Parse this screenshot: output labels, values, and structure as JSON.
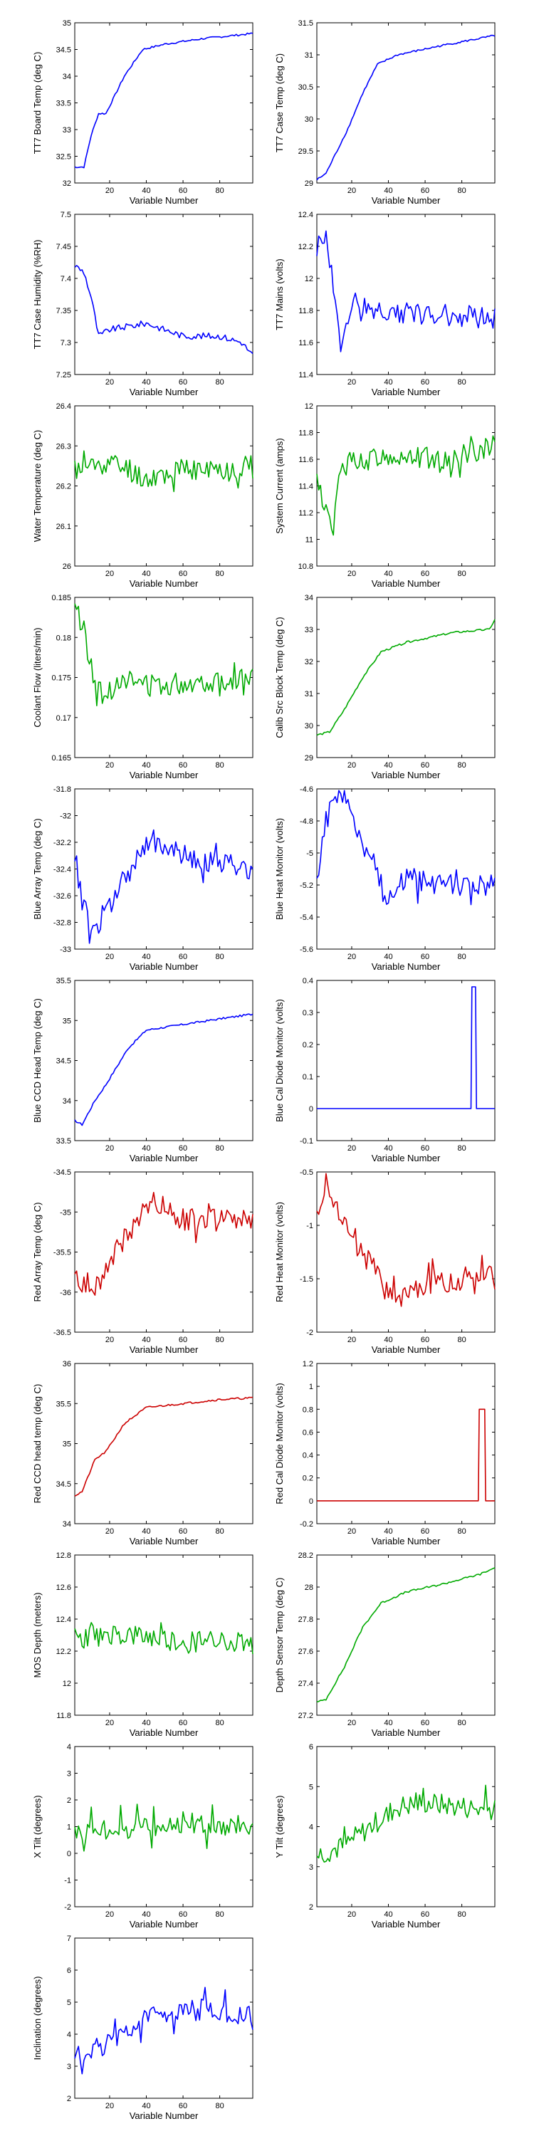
{
  "figure": {
    "xlabel": "Variable Number",
    "x_ticks": [
      20,
      40,
      60,
      80
    ],
    "xlim": [
      1,
      98
    ]
  },
  "chart_data": [
    {
      "type": "line",
      "ylabel": "TT7 Board Temp (deg C)",
      "ylim": [
        32,
        35
      ],
      "y_ticks": [
        "32",
        "32.5",
        "33",
        "33.5",
        "34",
        "34.5",
        "35"
      ],
      "color": "#0000ff",
      "shape": "cumrise",
      "series": [
        {
          "points": [
            [
              1,
              32.3
            ],
            [
              6,
              32.3
            ],
            [
              10,
              32.9
            ],
            [
              14,
              33.3
            ],
            [
              18,
              33.3
            ],
            [
              28,
              34.0
            ],
            [
              38,
              34.5
            ],
            [
              50,
              34.6
            ],
            [
              70,
              34.7
            ],
            [
              98,
              34.8
            ]
          ]
        }
      ]
    },
    {
      "type": "line",
      "ylabel": "TT7 Case Temp (deg C)",
      "ylim": [
        29,
        31.5
      ],
      "y_ticks": [
        "29",
        "29.5",
        "30",
        "30.5",
        "31",
        "31.5"
      ],
      "color": "#0000ff",
      "shape": "cumrise",
      "series": [
        {
          "points": [
            [
              1,
              29.05
            ],
            [
              6,
              29.15
            ],
            [
              12,
              29.5
            ],
            [
              18,
              29.85
            ],
            [
              26,
              30.4
            ],
            [
              34,
              30.85
            ],
            [
              45,
              31.0
            ],
            [
              70,
              31.15
            ],
            [
              98,
              31.3
            ]
          ]
        }
      ]
    },
    {
      "type": "line",
      "ylabel": "TT7 Case Humidity (%RH)",
      "ylim": [
        7.25,
        7.5
      ],
      "y_ticks": [
        "7.25",
        "7.3",
        "7.35",
        "7.4",
        "7.45",
        "7.5"
      ],
      "color": "#0000ff",
      "shape": "steps",
      "series": [
        {
          "points": [
            [
              1,
              7.42
            ],
            [
              6,
              7.41
            ],
            [
              10,
              7.37
            ],
            [
              14,
              7.31
            ],
            [
              20,
              7.32
            ],
            [
              40,
              7.33
            ],
            [
              60,
              7.31
            ],
            [
              80,
              7.31
            ],
            [
              92,
              7.3
            ],
            [
              98,
              7.28
            ]
          ]
        }
      ]
    },
    {
      "type": "line",
      "ylabel": "TT7 Mains  (volts)",
      "ylim": [
        11.4,
        12.4
      ],
      "y_ticks": [
        "11.4",
        "11.6",
        "11.8",
        "12",
        "12.2",
        "12.4"
      ],
      "color": "#0000ff",
      "shape": "noisy",
      "series": [
        {
          "points": [
            [
              1,
              12.2
            ],
            [
              6,
              12.25
            ],
            [
              9,
              12.05
            ],
            [
              12,
              11.75
            ],
            [
              16,
              11.62
            ],
            [
              20,
              11.85
            ],
            [
              30,
              11.8
            ],
            [
              60,
              11.78
            ],
            [
              98,
              11.75
            ]
          ]
        }
      ]
    },
    {
      "type": "line",
      "ylabel": "Water Temperature (deg C)",
      "ylim": [
        26,
        26.4
      ],
      "y_ticks": [
        "26",
        "26.1",
        "26.2",
        "26.3",
        "26.4"
      ],
      "color": "#00aa00",
      "shape": "noisy",
      "series": [
        {
          "points": [
            [
              1,
              26.24
            ],
            [
              20,
              26.26
            ],
            [
              40,
              26.22
            ],
            [
              60,
              26.24
            ],
            [
              80,
              26.24
            ],
            [
              98,
              26.25
            ]
          ]
        }
      ]
    },
    {
      "type": "line",
      "ylabel": "System Current (amps)",
      "ylim": [
        10.8,
        12
      ],
      "y_ticks": [
        "10.8",
        "11",
        "11.2",
        "11.4",
        "11.6",
        "11.8",
        "12"
      ],
      "color": "#00aa00",
      "shape": "noisy",
      "series": [
        {
          "points": [
            [
              1,
              11.45
            ],
            [
              6,
              11.2
            ],
            [
              10,
              11.05
            ],
            [
              14,
              11.55
            ],
            [
              25,
              11.6
            ],
            [
              50,
              11.62
            ],
            [
              75,
              11.6
            ],
            [
              98,
              11.72
            ]
          ]
        }
      ]
    },
    {
      "type": "line",
      "ylabel": "Coolant Flow (liters/min)",
      "ylim": [
        0.165,
        0.185
      ],
      "y_ticks": [
        "0.165",
        "0.17",
        "0.175",
        "0.18",
        "0.185"
      ],
      "color": "#00aa00",
      "shape": "noisy",
      "series": [
        {
          "points": [
            [
              1,
              0.184
            ],
            [
              6,
              0.181
            ],
            [
              10,
              0.176
            ],
            [
              16,
              0.172
            ],
            [
              25,
              0.175
            ],
            [
              40,
              0.174
            ],
            [
              70,
              0.1745
            ],
            [
              98,
              0.175
            ]
          ]
        }
      ]
    },
    {
      "type": "line",
      "ylabel": "Calib Src Block Temp (deg C)",
      "ylim": [
        29,
        34
      ],
      "y_ticks": [
        "29",
        "30",
        "31",
        "32",
        "33",
        "34"
      ],
      "color": "#00aa00",
      "shape": "cumrise",
      "series": [
        {
          "points": [
            [
              1,
              29.7
            ],
            [
              8,
              29.8
            ],
            [
              16,
              30.5
            ],
            [
              26,
              31.5
            ],
            [
              36,
              32.3
            ],
            [
              50,
              32.6
            ],
            [
              75,
              32.9
            ],
            [
              95,
              33.0
            ],
            [
              98,
              33.3
            ]
          ]
        }
      ]
    },
    {
      "type": "line",
      "ylabel": "Blue Array Temp (deg C)",
      "ylim": [
        -33,
        -31.8
      ],
      "y_ticks": [
        "-33",
        "-32.8",
        "-32.6",
        "-32.4",
        "-32.2",
        "-32",
        "-31.8"
      ],
      "color": "#0000ff",
      "shape": "noisy",
      "series": [
        {
          "points": [
            [
              1,
              -32.3
            ],
            [
              6,
              -32.7
            ],
            [
              12,
              -32.85
            ],
            [
              18,
              -32.75
            ],
            [
              28,
              -32.5
            ],
            [
              40,
              -32.2
            ],
            [
              60,
              -32.3
            ],
            [
              80,
              -32.35
            ],
            [
              98,
              -32.4
            ]
          ]
        }
      ]
    },
    {
      "type": "line",
      "ylabel": "Blue Heat Monitor (volts)",
      "ylim": [
        -5.6,
        -4.6
      ],
      "y_ticks": [
        "-5.6",
        "-5.4",
        "-5.2",
        "-5",
        "-4.8",
        "-4.6"
      ],
      "color": "#0000ff",
      "shape": "noisy",
      "series": [
        {
          "points": [
            [
              1,
              -5.1
            ],
            [
              6,
              -4.8
            ],
            [
              12,
              -4.65
            ],
            [
              20,
              -4.7
            ],
            [
              26,
              -5.0
            ],
            [
              32,
              -5.0
            ],
            [
              38,
              -5.3
            ],
            [
              50,
              -5.15
            ],
            [
              70,
              -5.2
            ],
            [
              98,
              -5.2
            ]
          ]
        }
      ]
    },
    {
      "type": "line",
      "ylabel": "Blue CCD Head Temp (deg C)",
      "ylim": [
        33.5,
        35.5
      ],
      "y_ticks": [
        "33.5",
        "34",
        "34.5",
        "35",
        "35.5"
      ],
      "color": "#0000ff",
      "shape": "cumrise",
      "series": [
        {
          "points": [
            [
              1,
              33.75
            ],
            [
              5,
              33.7
            ],
            [
              12,
              34.0
            ],
            [
              18,
              34.2
            ],
            [
              30,
              34.65
            ],
            [
              40,
              34.88
            ],
            [
              60,
              34.95
            ],
            [
              80,
              35.02
            ],
            [
              98,
              35.08
            ]
          ]
        }
      ]
    },
    {
      "type": "line",
      "ylabel": "Blue Cal Diode Monitor (volts)",
      "ylim": [
        -0.1,
        0.4
      ],
      "y_ticks": [
        "-0.1",
        "0",
        "0.1",
        "0.2",
        "0.3",
        "0.4"
      ],
      "color": "#0000ff",
      "shape": "spike",
      "series": [
        {
          "points": [
            [
              1,
              0
            ],
            [
              85,
              0
            ],
            [
              85.5,
              0.38
            ],
            [
              87.5,
              0.38
            ],
            [
              88,
              0
            ],
            [
              98,
              0
            ]
          ]
        }
      ]
    },
    {
      "type": "line",
      "ylabel": "Red Array Temp (deg C)",
      "ylim": [
        -36.5,
        -34.5
      ],
      "y_ticks": [
        "-36.5",
        "-36",
        "-35.5",
        "-35",
        "-34.5"
      ],
      "color": "#cc0000",
      "shape": "noisy",
      "series": [
        {
          "points": [
            [
              1,
              -35.8
            ],
            [
              8,
              -36.0
            ],
            [
              16,
              -35.8
            ],
            [
              26,
              -35.4
            ],
            [
              36,
              -35.1
            ],
            [
              44,
              -34.85
            ],
            [
              60,
              -35.1
            ],
            [
              80,
              -35.1
            ],
            [
              98,
              -35.1
            ]
          ]
        }
      ]
    },
    {
      "type": "line",
      "ylabel": "Red Heat Monitor (volts)",
      "ylim": [
        -2,
        -0.5
      ],
      "y_ticks": [
        "-2",
        "-1.5",
        "-1",
        "-0.5"
      ],
      "color": "#cc0000",
      "shape": "noisy",
      "series": [
        {
          "points": [
            [
              1,
              -0.85
            ],
            [
              6,
              -0.6
            ],
            [
              12,
              -0.8
            ],
            [
              20,
              -1.15
            ],
            [
              30,
              -1.35
            ],
            [
              38,
              -1.6
            ],
            [
              45,
              -1.7
            ],
            [
              60,
              -1.55
            ],
            [
              80,
              -1.5
            ],
            [
              98,
              -1.4
            ]
          ]
        }
      ]
    },
    {
      "type": "line",
      "ylabel": "Red CCD head temp (deg C)",
      "ylim": [
        34,
        36
      ],
      "y_ticks": [
        "34",
        "34.5",
        "35",
        "35.5",
        "36"
      ],
      "color": "#cc0000",
      "shape": "cumrise",
      "series": [
        {
          "points": [
            [
              1,
              34.35
            ],
            [
              5,
              34.4
            ],
            [
              12,
              34.8
            ],
            [
              18,
              34.9
            ],
            [
              28,
              35.25
            ],
            [
              40,
              35.45
            ],
            [
              60,
              35.5
            ],
            [
              80,
              35.55
            ],
            [
              98,
              35.57
            ]
          ]
        }
      ]
    },
    {
      "type": "line",
      "ylabel": "Red Cal Diode Monitor (volts)",
      "ylim": [
        -0.2,
        1.2
      ],
      "y_ticks": [
        "-0.2",
        "0",
        "0.2",
        "0.4",
        "0.6",
        "0.8",
        "1",
        "1.2"
      ],
      "color": "#cc0000",
      "shape": "spike",
      "series": [
        {
          "points": [
            [
              1,
              0
            ],
            [
              89,
              0
            ],
            [
              89.5,
              0.8
            ],
            [
              92.5,
              0.8
            ],
            [
              93,
              0
            ],
            [
              98,
              0
            ]
          ]
        }
      ]
    },
    {
      "type": "line",
      "ylabel": "MOS Depth  (meters)",
      "ylim": [
        11.8,
        12.8
      ],
      "y_ticks": [
        "11.8",
        "12",
        "12.2",
        "12.4",
        "12.6",
        "12.8"
      ],
      "color": "#00aa00",
      "shape": "noisy",
      "series": [
        {
          "points": [
            [
              1,
              12.28
            ],
            [
              20,
              12.3
            ],
            [
              40,
              12.28
            ],
            [
              60,
              12.25
            ],
            [
              80,
              12.28
            ],
            [
              98,
              12.25
            ]
          ]
        }
      ]
    },
    {
      "type": "line",
      "ylabel": "Depth Sensor Temp (deg C)",
      "ylim": [
        27.2,
        28.2
      ],
      "y_ticks": [
        "27.2",
        "27.4",
        "27.6",
        "27.8",
        "28",
        "28.2"
      ],
      "color": "#00aa00",
      "shape": "cumrise",
      "series": [
        {
          "points": [
            [
              1,
              27.28
            ],
            [
              6,
              27.3
            ],
            [
              16,
              27.5
            ],
            [
              26,
              27.75
            ],
            [
              36,
              27.9
            ],
            [
              50,
              27.97
            ],
            [
              70,
              28.02
            ],
            [
              90,
              28.08
            ],
            [
              98,
              28.12
            ]
          ]
        }
      ]
    },
    {
      "type": "line",
      "ylabel": "X Tilt  (degrees)",
      "ylim": [
        -2,
        4
      ],
      "y_ticks": [
        "-2",
        "-1",
        "0",
        "1",
        "2",
        "3",
        "4"
      ],
      "color": "#00aa00",
      "shape": "noisy",
      "series": [
        {
          "points": [
            [
              1,
              0.9
            ],
            [
              20,
              0.9
            ],
            [
              40,
              1.0
            ],
            [
              60,
              1.2
            ],
            [
              80,
              1.0
            ],
            [
              98,
              1.0
            ]
          ]
        }
      ]
    },
    {
      "type": "line",
      "ylabel": "Y Tilt  (degrees)",
      "ylim": [
        2,
        6
      ],
      "y_ticks": [
        "2",
        "3",
        "4",
        "5",
        "6"
      ],
      "color": "#00aa00",
      "shape": "noisy",
      "series": [
        {
          "points": [
            [
              1,
              3.3
            ],
            [
              15,
              3.5
            ],
            [
              30,
              4.0
            ],
            [
              45,
              4.5
            ],
            [
              60,
              4.6
            ],
            [
              80,
              4.5
            ],
            [
              98,
              4.4
            ]
          ]
        }
      ]
    },
    {
      "type": "line",
      "ylabel": "Inclination  (degrees)",
      "ylim": [
        2,
        7
      ],
      "y_ticks": [
        "2",
        "3",
        "4",
        "5",
        "6",
        "7"
      ],
      "color": "#0000ff",
      "shape": "noisy",
      "series": [
        {
          "points": [
            [
              1,
              3.4
            ],
            [
              15,
              3.6
            ],
            [
              30,
              4.1
            ],
            [
              45,
              4.6
            ],
            [
              60,
              4.8
            ],
            [
              80,
              4.7
            ],
            [
              98,
              4.5
            ]
          ]
        }
      ]
    }
  ]
}
